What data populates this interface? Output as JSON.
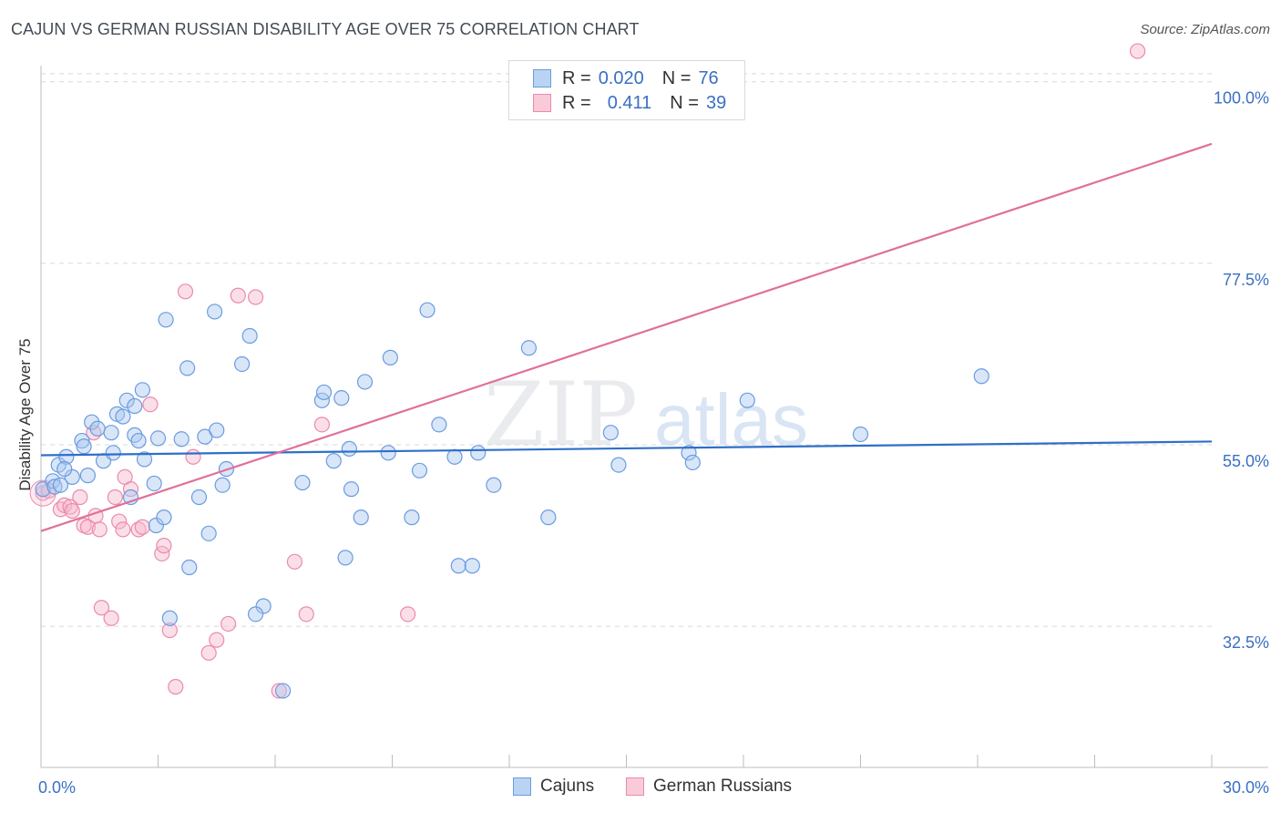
{
  "title": "CAJUN VS GERMAN RUSSIAN DISABILITY AGE OVER 75 CORRELATION CHART",
  "source": "Source: ZipAtlas.com",
  "watermark": {
    "zip": "ZIP",
    "atlas": "atlas"
  },
  "legend_top": {
    "rows": [
      {
        "r_label": "R =",
        "r_value": "0.020",
        "n_label": "N =",
        "n_value": "76"
      },
      {
        "r_label": "R =",
        "r_value": "0.411",
        "n_label": "N =",
        "n_value": "39"
      }
    ]
  },
  "legend_bottom": {
    "cajuns": "Cajuns",
    "german_russians": "German Russians"
  },
  "colors": {
    "cajun_fill": "#a9c8f0",
    "cajun_stroke": "#6b9be0",
    "cajun_line": "#2f6fc9",
    "gr_fill": "#f6b9cc",
    "gr_stroke": "#ec8aab",
    "gr_line": "#e0709a",
    "tick_label": "#3a6fc4",
    "grid": "#d8d8d8"
  },
  "chart_data": {
    "type": "scatter",
    "title": "CAJUN VS GERMAN RUSSIAN DISABILITY AGE OVER 75 CORRELATION CHART",
    "xlabel": "",
    "ylabel": "Disability Age Over 75",
    "xlim": [
      0,
      30
    ],
    "ylim": [
      15,
      102
    ],
    "x_tick_labels": [
      "0.0%",
      "30.0%"
    ],
    "y_ticks": [
      32.5,
      55.0,
      77.5,
      100.0
    ],
    "y_tick_labels": [
      "32.5%",
      "55.0%",
      "77.5%",
      "100.0%"
    ],
    "series": [
      {
        "name": "Cajuns",
        "trend": {
          "x": [
            0,
            30
          ],
          "y": [
            53.7,
            55.4
          ]
        },
        "points": [
          [
            0.05,
            49.5
          ],
          [
            0.3,
            50.5
          ],
          [
            0.35,
            49.8
          ],
          [
            0.45,
            52.5
          ],
          [
            0.5,
            50.0
          ],
          [
            0.65,
            53.5
          ],
          [
            0.8,
            51.0
          ],
          [
            1.05,
            55.5
          ],
          [
            0.6,
            52.0
          ],
          [
            1.1,
            54.8
          ],
          [
            1.2,
            51.2
          ],
          [
            1.3,
            57.8
          ],
          [
            1.45,
            57.0
          ],
          [
            1.6,
            53.0
          ],
          [
            1.8,
            56.5
          ],
          [
            1.85,
            54.0
          ],
          [
            1.95,
            58.8
          ],
          [
            2.1,
            58.5
          ],
          [
            2.2,
            60.5
          ],
          [
            2.3,
            48.5
          ],
          [
            2.4,
            56.2
          ],
          [
            2.5,
            55.5
          ],
          [
            2.6,
            61.8
          ],
          [
            2.4,
            59.8
          ],
          [
            2.65,
            53.2
          ],
          [
            2.9,
            50.2
          ],
          [
            2.95,
            45.0
          ],
          [
            3.0,
            55.8
          ],
          [
            3.15,
            46.0
          ],
          [
            3.3,
            33.5
          ],
          [
            3.2,
            70.5
          ],
          [
            3.6,
            55.7
          ],
          [
            3.75,
            64.5
          ],
          [
            3.8,
            39.8
          ],
          [
            4.05,
            48.5
          ],
          [
            4.2,
            56.0
          ],
          [
            4.45,
            71.5
          ],
          [
            4.5,
            56.8
          ],
          [
            4.3,
            44.0
          ],
          [
            4.65,
            50.0
          ],
          [
            4.75,
            52.0
          ],
          [
            5.15,
            65.0
          ],
          [
            5.35,
            68.5
          ],
          [
            5.7,
            35.0
          ],
          [
            5.5,
            34.0
          ],
          [
            6.2,
            24.5
          ],
          [
            6.7,
            50.3
          ],
          [
            7.2,
            60.5
          ],
          [
            7.25,
            61.5
          ],
          [
            7.5,
            53.0
          ],
          [
            7.7,
            60.8
          ],
          [
            7.8,
            41.0
          ],
          [
            7.9,
            54.5
          ],
          [
            7.95,
            49.5
          ],
          [
            8.2,
            46.0
          ],
          [
            8.3,
            62.8
          ],
          [
            8.9,
            54.0
          ],
          [
            8.95,
            65.8
          ],
          [
            9.5,
            46.0
          ],
          [
            9.7,
            51.8
          ],
          [
            9.9,
            71.7
          ],
          [
            10.2,
            57.5
          ],
          [
            10.6,
            53.5
          ],
          [
            10.7,
            40.0
          ],
          [
            11.05,
            40.0
          ],
          [
            11.2,
            54.0
          ],
          [
            11.6,
            50.0
          ],
          [
            12.5,
            67.0
          ],
          [
            13.0,
            46.0
          ],
          [
            14.6,
            56.5
          ],
          [
            14.8,
            52.5
          ],
          [
            16.6,
            54.0
          ],
          [
            16.7,
            52.8
          ],
          [
            18.1,
            60.5
          ],
          [
            21.0,
            56.3
          ],
          [
            24.1,
            63.5
          ]
        ]
      },
      {
        "name": "German Russians",
        "trend": {
          "x": [
            0,
            30
          ],
          "y": [
            44.3,
            92.3
          ]
        },
        "points": [
          [
            0.05,
            49.0
          ],
          [
            0.2,
            49.3
          ],
          [
            0.5,
            47.0
          ],
          [
            0.6,
            47.5
          ],
          [
            0.75,
            47.3
          ],
          [
            0.8,
            46.8
          ],
          [
            1.0,
            48.5
          ],
          [
            1.1,
            45.0
          ],
          [
            1.2,
            44.8
          ],
          [
            1.35,
            56.5
          ],
          [
            1.4,
            46.2
          ],
          [
            1.5,
            44.5
          ],
          [
            1.55,
            34.8
          ],
          [
            1.8,
            33.5
          ],
          [
            1.9,
            48.5
          ],
          [
            2.0,
            45.5
          ],
          [
            2.1,
            44.5
          ],
          [
            2.15,
            51.0
          ],
          [
            2.3,
            49.5
          ],
          [
            2.5,
            44.5
          ],
          [
            2.6,
            44.8
          ],
          [
            2.8,
            60.0
          ],
          [
            3.1,
            41.5
          ],
          [
            3.15,
            42.5
          ],
          [
            3.3,
            32.0
          ],
          [
            3.45,
            25.0
          ],
          [
            3.7,
            74.0
          ],
          [
            3.9,
            53.5
          ],
          [
            4.3,
            29.2
          ],
          [
            4.5,
            30.8
          ],
          [
            4.8,
            32.8
          ],
          [
            5.05,
            73.5
          ],
          [
            5.5,
            73.3
          ],
          [
            6.1,
            24.5
          ],
          [
            6.5,
            40.5
          ],
          [
            6.8,
            34.0
          ],
          [
            7.2,
            57.5
          ],
          [
            9.4,
            34.0
          ],
          [
            28.1,
            103.8
          ]
        ]
      }
    ]
  }
}
